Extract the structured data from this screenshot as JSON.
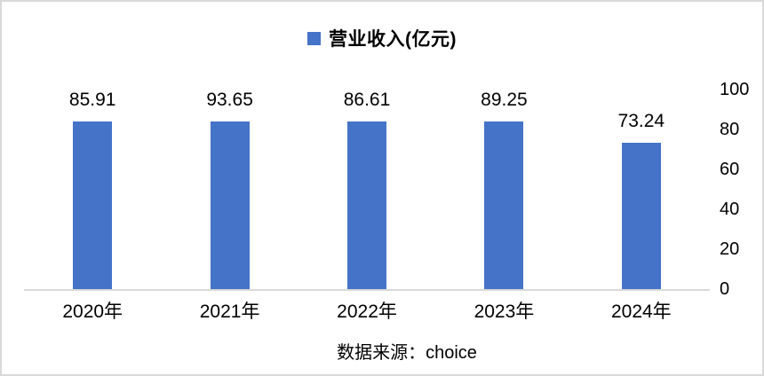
{
  "chart_data": {
    "type": "bar",
    "title": "",
    "legend_label": "营业收入(亿元)",
    "categories": [
      "2020年",
      "2021年",
      "2022年",
      "2023年",
      "2024年"
    ],
    "values": [
      85.91,
      93.65,
      86.61,
      89.25,
      73.24
    ],
    "data_labels": [
      "85.91",
      "93.65",
      "86.61",
      "89.25",
      "73.24"
    ],
    "xlabel": "",
    "ylabel": "",
    "ylim": [
      0,
      100
    ],
    "yticks": [
      0,
      20,
      40,
      60,
      80,
      100
    ],
    "yaxis_side": "right",
    "grid": false,
    "legend_position": "top-center",
    "bar_color": "#4573c8"
  },
  "legend": {
    "label": "营业收入(亿元)",
    "marker_color": "#4573c8"
  },
  "source_note": "数据来源：choice",
  "colors": {
    "bar": "#4573c8",
    "axis_line": "#d9d9d9",
    "text": "#000000",
    "background": "#ffffff"
  }
}
